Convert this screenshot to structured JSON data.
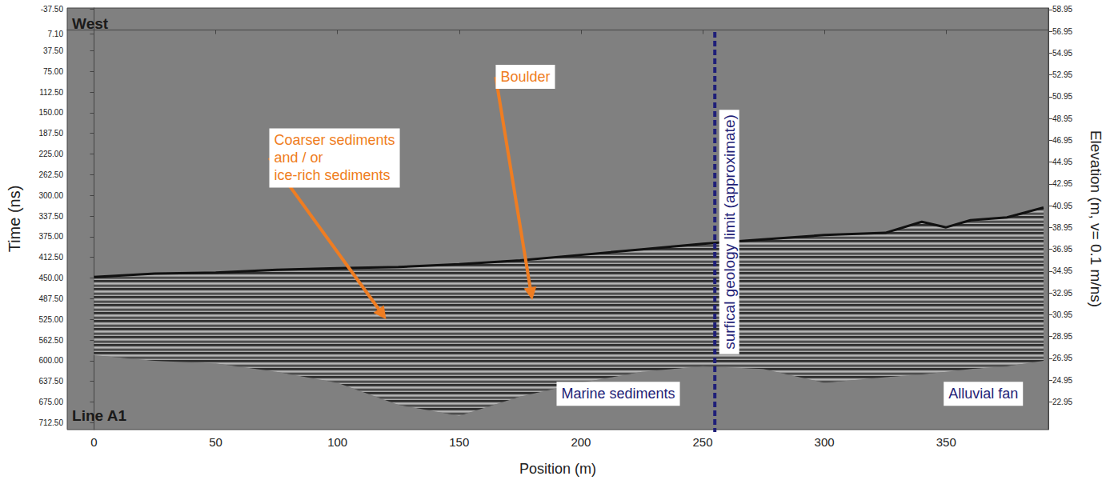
{
  "chart_data": {
    "type": "radargram",
    "x_label": "Position (m)",
    "y_label": "Time (ns)",
    "y2_label": "Elevation (m, v= 0.1 m/ns)",
    "xlim": [
      -11,
      392
    ],
    "xticks": [
      0,
      50,
      100,
      150,
      200,
      250,
      300,
      350
    ],
    "ylim": [
      725,
      -40
    ],
    "yticks": [
      {
        "value": -37.5,
        "label": "-37.50"
      },
      {
        "value": 7.1,
        "label": "7.10"
      },
      {
        "value": 37.5,
        "label": "37.50"
      },
      {
        "value": 75,
        "label": "75.00"
      },
      {
        "value": 112.5,
        "label": "112.50"
      },
      {
        "value": 150,
        "label": "150.00"
      },
      {
        "value": 187.5,
        "label": "187.50"
      },
      {
        "value": 225,
        "label": "225.00"
      },
      {
        "value": 262.5,
        "label": "262.50"
      },
      {
        "value": 300,
        "label": "300.00"
      },
      {
        "value": 337.5,
        "label": "337.50"
      },
      {
        "value": 375,
        "label": "375.00"
      },
      {
        "value": 412.5,
        "label": "412.50"
      },
      {
        "value": 450,
        "label": "450.00"
      },
      {
        "value": 487.5,
        "label": "487.50"
      },
      {
        "value": 525,
        "label": "525.00"
      },
      {
        "value": 562.5,
        "label": "562.50"
      },
      {
        "value": 600,
        "label": "600.00"
      },
      {
        "value": 637.5,
        "label": "637.50"
      },
      {
        "value": 675,
        "label": "675.00"
      },
      {
        "value": 712.5,
        "label": "712.50"
      }
    ],
    "y2lim": [
      20.42,
      59.08
    ],
    "y2ticks": [
      22.95,
      24.95,
      26.95,
      28.95,
      30.95,
      32.95,
      34.95,
      36.95,
      38.95,
      40.95,
      42.95,
      44.95,
      46.95,
      48.95,
      50.95,
      52.95,
      54.95,
      56.95,
      58.95
    ],
    "grid": false,
    "x": [
      0,
      25,
      50,
      75,
      100,
      125,
      150,
      175,
      200,
      225,
      250,
      275,
      300,
      325,
      340,
      350,
      360,
      375,
      390
    ],
    "series": [
      {
        "type": "line",
        "color": "#111111",
        "values": [
          448,
          442,
          440,
          435,
          432,
          430,
          425,
          418,
          408,
          398,
          388,
          380,
          372,
          368,
          348,
          358,
          345,
          340,
          322
        ]
      },
      {
        "type": "area",
        "color": "#5c5c5c",
        "values": [
          590,
          600,
          605,
          620,
          640,
          680,
          700,
          665,
          640,
          620,
          610,
          615,
          640,
          630,
          625,
          620,
          615,
          610,
          600
        ]
      }
    ],
    "corner_labels": [
      {
        "text": "West",
        "at": [
          -9,
          -12
        ]
      },
      {
        "text": "Line A1",
        "at": [
          -9,
          700
        ]
      }
    ],
    "annotations": [
      {
        "text_lines": [
          "Coarser sediments",
          "and / or",
          "ice-rich sediments"
        ],
        "at": [
          72,
          232
        ],
        "color": "#ef7d22",
        "arrow_to": [
          120,
          525
        ]
      },
      {
        "text_lines": [
          "Boulder"
        ],
        "at": [
          165,
          85
        ],
        "color": "#ef7d22",
        "arrow_to": [
          180,
          490
        ]
      },
      {
        "text_lines": [
          "Marine sediments"
        ],
        "at": [
          190,
          660
        ],
        "color": "#1f1f78"
      },
      {
        "text_lines": [
          "Alluvial fan"
        ],
        "at": [
          349,
          660
        ],
        "color": "#1f1f78"
      }
    ],
    "limit": {
      "x": 255,
      "text": "surfical geology limit (approximate)",
      "color": "#1f1f78",
      "line_style": "dashed"
    }
  }
}
